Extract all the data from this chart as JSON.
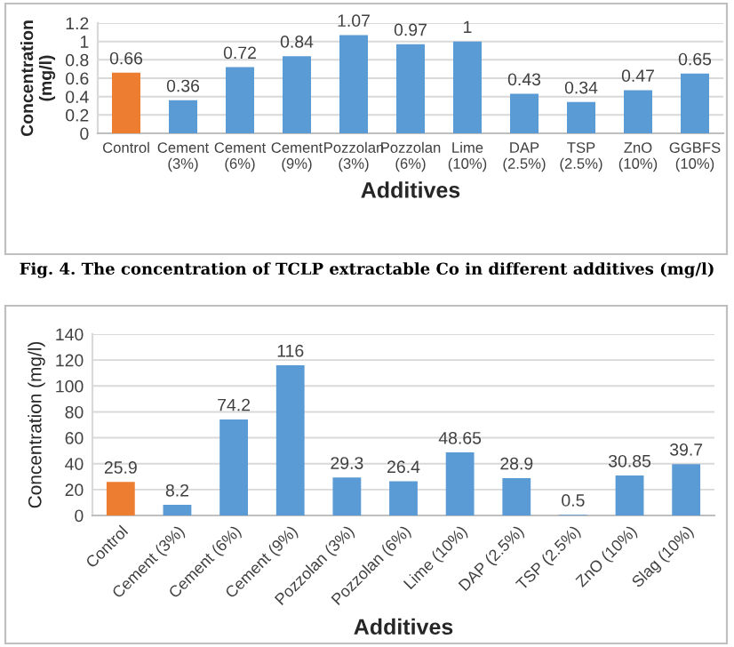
{
  "chart_data": [
    {
      "type": "bar",
      "xlabel": "Additives",
      "ylabel": "Concentration\n(mg/l)",
      "categories": [
        "Control",
        "Cement\n(3%)",
        "Cement\n(6%)",
        "Cement\n(9%)",
        "Pozzolan\n(3%)",
        "Pozzolan\n(6%)",
        "Lime\n(10%)",
        "DAP\n(2.5%)",
        "TSP\n(2.5%)",
        "ZnO\n(10%)",
        "GGBFS\n(10%)"
      ],
      "values": [
        0.66,
        0.36,
        0.72,
        0.84,
        1.07,
        0.97,
        1,
        0.43,
        0.34,
        0.47,
        0.65
      ],
      "colors": [
        "#ed7d31",
        "#5b9bd5",
        "#5b9bd5",
        "#5b9bd5",
        "#5b9bd5",
        "#5b9bd5",
        "#5b9bd5",
        "#5b9bd5",
        "#5b9bd5",
        "#5b9bd5",
        "#5b9bd5"
      ],
      "ylim": [
        0,
        1.2
      ],
      "yticks": [
        0,
        0.2,
        0.4,
        0.6,
        0.8,
        1,
        1.2
      ],
      "grid": "y",
      "data_labels": true,
      "annotations": [
        "Fig. 4. The concentration of TCLP extractable Co in different additives (mg/l)"
      ]
    },
    {
      "type": "bar",
      "xlabel": "Additives",
      "ylabel": "Concentration (mg/l)",
      "categories": [
        "Control",
        "Cement (3%)",
        "Cement (6%)",
        "Cement (9%)",
        "Pozzolan (3%)",
        "Pozzolan (6%)",
        "Lime (10%)",
        "DAP (2.5%)",
        "TSP (2.5%)",
        "ZnO (10%)",
        "Slag (10%)"
      ],
      "values": [
        25.9,
        8.2,
        74.2,
        116,
        29.3,
        26.4,
        48.65,
        28.9,
        0.5,
        30.85,
        39.7
      ],
      "colors": [
        "#ed7d31",
        "#5b9bd5",
        "#5b9bd5",
        "#5b9bd5",
        "#5b9bd5",
        "#5b9bd5",
        "#5b9bd5",
        "#5b9bd5",
        "#5b9bd5",
        "#5b9bd5",
        "#5b9bd5"
      ],
      "ylim": [
        0,
        140
      ],
      "yticks": [
        0,
        20,
        40,
        60,
        80,
        100,
        120,
        140
      ],
      "grid": "y",
      "data_labels": true
    }
  ]
}
